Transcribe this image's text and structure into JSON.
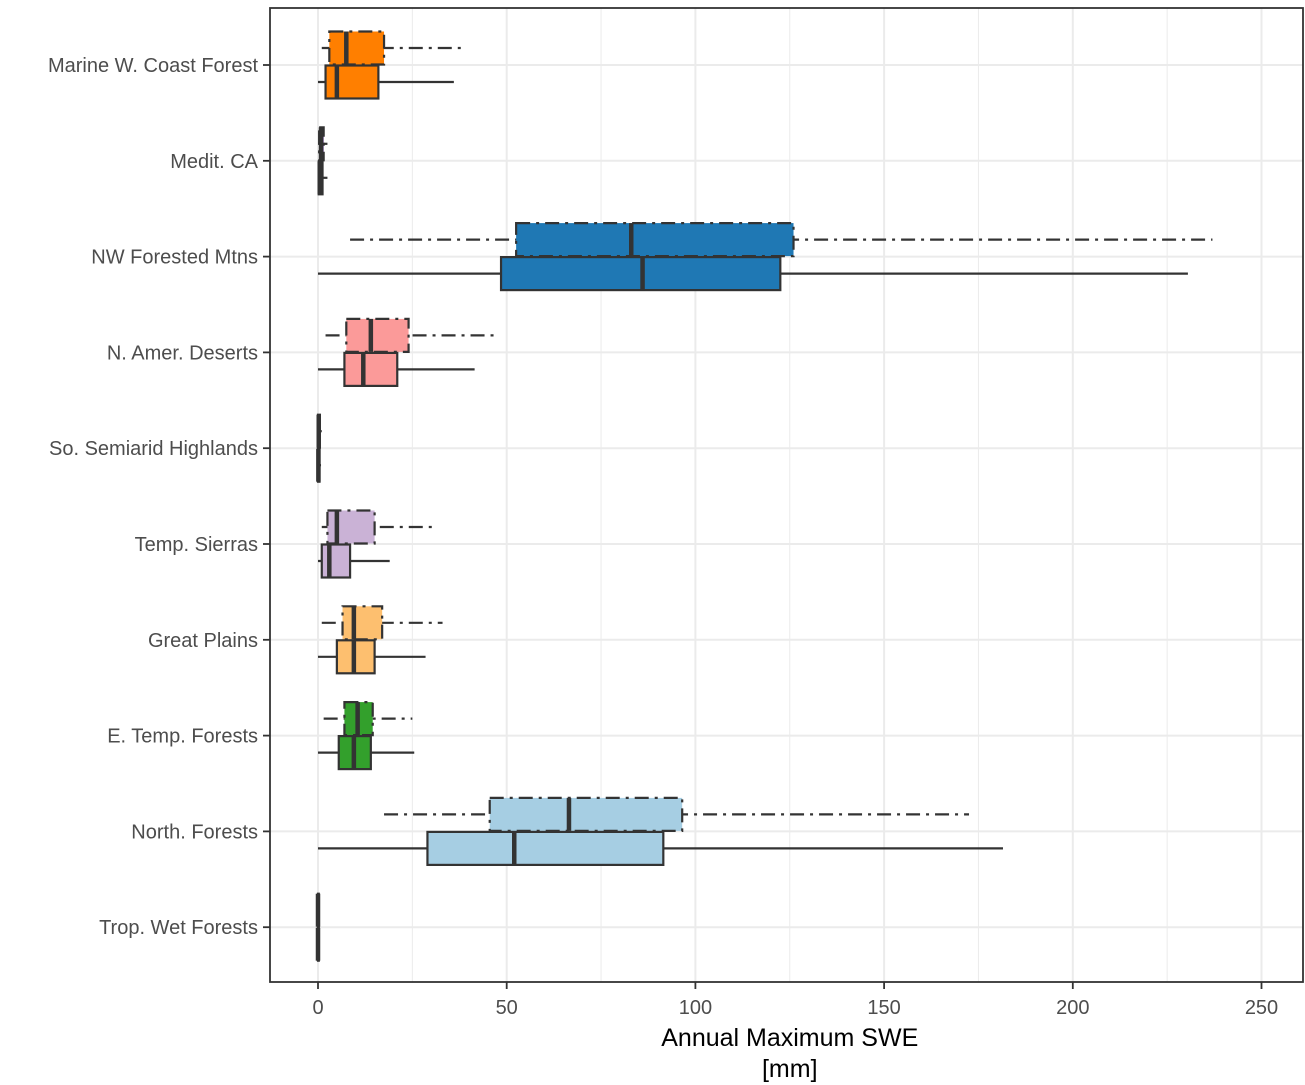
{
  "chart_data": {
    "type": "boxplot",
    "orientation": "horizontal",
    "xlabel_line1": "Annual Maximum SWE",
    "xlabel_line2": "[mm]",
    "ylabel": "",
    "xlim": [
      -12,
      260
    ],
    "x_ticks": [
      0,
      50,
      100,
      150,
      200,
      250
    ],
    "x_minor_ticks": [
      25,
      75,
      125,
      175,
      225
    ],
    "grid": true,
    "legend": "none",
    "categories": [
      "Marine W. Coast Forest",
      "Medit. CA",
      "NW Forested Mtns",
      "N. Amer. Deserts",
      "So. Semiarid Highlands",
      "Temp. Sierras",
      "Great Plains",
      "E. Temp. Forests",
      "North. Forests",
      "Trop. Wet Forests"
    ],
    "colors": [
      "#ff7f00",
      "#6a3d9a",
      "#1f78b4",
      "#fb9a99",
      "#b15928",
      "#cab2d6",
      "#fdbf6f",
      "#33a02c",
      "#a6cee3",
      "#e31a1c"
    ],
    "series": [
      {
        "linestyle": "dashdot",
        "boxes": [
          {
            "min": 1,
            "q1": 3,
            "median": 7.5,
            "q3": 17.5,
            "max": 38.5
          },
          {
            "min": 0,
            "q1": 0.3,
            "median": 0.8,
            "q3": 1.5,
            "max": 2.5
          },
          {
            "min": 8.5,
            "q1": 52.5,
            "median": 83,
            "q3": 126,
            "max": 237
          },
          {
            "min": 2,
            "q1": 7.5,
            "median": 14,
            "q3": 24,
            "max": 47
          },
          {
            "min": 0,
            "q1": 0,
            "median": 0.2,
            "q3": 0.5,
            "max": 1
          },
          {
            "min": 1,
            "q1": 2.5,
            "median": 5,
            "q3": 15,
            "max": 31.5
          },
          {
            "min": 1,
            "q1": 6.5,
            "median": 9.5,
            "q3": 17,
            "max": 33
          },
          {
            "min": 1.5,
            "q1": 7,
            "median": 10.5,
            "q3": 14.5,
            "max": 25
          },
          {
            "min": 17.5,
            "q1": 45.5,
            "median": 66.5,
            "q3": 96.5,
            "max": 172.5
          },
          {
            "min": 0,
            "q1": 0,
            "median": 0,
            "q3": 0.2,
            "max": 0.5
          }
        ]
      },
      {
        "linestyle": "solid",
        "boxes": [
          {
            "min": 0,
            "q1": 2,
            "median": 5,
            "q3": 16,
            "max": 36
          },
          {
            "min": 0,
            "q1": 0.2,
            "median": 0.5,
            "q3": 1.2,
            "max": 2.5
          },
          {
            "min": 0,
            "q1": 48.5,
            "median": 86,
            "q3": 122.5,
            "max": 230.5
          },
          {
            "min": 0,
            "q1": 7,
            "median": 12,
            "q3": 21,
            "max": 41.5
          },
          {
            "min": 0,
            "q1": 0,
            "median": 0.1,
            "q3": 0.4,
            "max": 0.8
          },
          {
            "min": 0,
            "q1": 1,
            "median": 3,
            "q3": 8.5,
            "max": 19
          },
          {
            "min": 0,
            "q1": 5,
            "median": 9.5,
            "q3": 15,
            "max": 28.5
          },
          {
            "min": 0,
            "q1": 5.5,
            "median": 9.5,
            "q3": 14,
            "max": 25.5
          },
          {
            "min": 0,
            "q1": 29,
            "median": 52,
            "q3": 91.5,
            "max": 181.5
          },
          {
            "min": 0,
            "q1": 0,
            "median": 0,
            "q3": 0.2,
            "max": 0.5
          }
        ]
      }
    ]
  }
}
